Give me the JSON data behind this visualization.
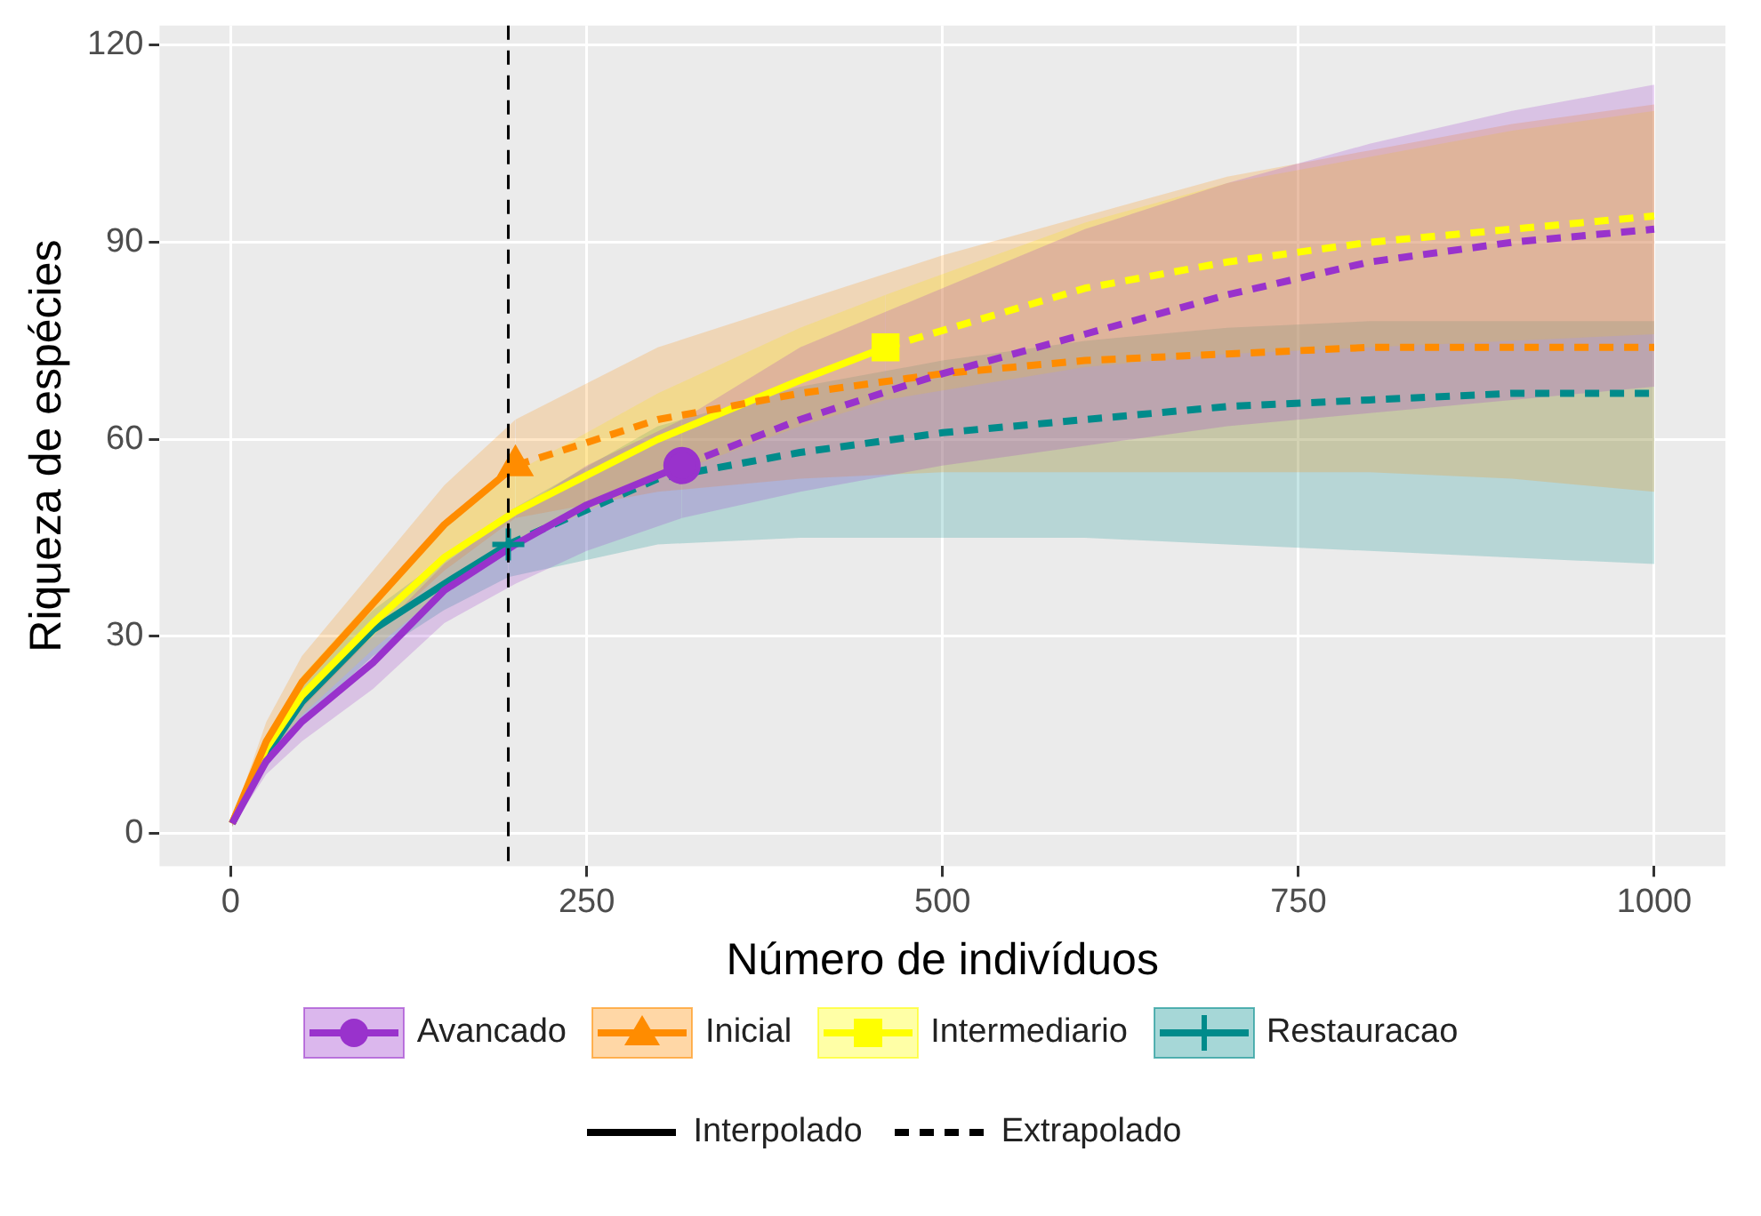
{
  "chart_data": {
    "type": "line",
    "xlabel": "Número de indivíduos",
    "ylabel": "Riqueza de espécies",
    "xlim": [
      -50,
      1050
    ],
    "ylim": [
      -5,
      123
    ],
    "xticks": [
      0,
      250,
      500,
      750,
      1000
    ],
    "yticks": [
      0,
      30,
      60,
      90,
      120
    ],
    "grid": true,
    "legend": "bottom",
    "ref_lines": [
      {
        "axis": "x",
        "value": 195,
        "color": "#000000",
        "line_style": "dashed"
      }
    ],
    "series": [
      {
        "type": "scatter",
        "color": "#9932CC",
        "marker": "circle",
        "x": [
          317
        ],
        "values": [
          56
        ]
      },
      {
        "type": "scatter",
        "color": "#FF8C00",
        "marker": "triangle",
        "x": [
          200
        ],
        "values": [
          56
        ]
      },
      {
        "type": "scatter",
        "color": "#FFFF00",
        "marker": "square",
        "x": [
          460
        ],
        "values": [
          74
        ]
      },
      {
        "type": "scatter",
        "color": "#008B8B",
        "marker": "cross",
        "x": [
          195
        ],
        "values": [
          44
        ]
      },
      {
        "name": "Avancado",
        "color": "#9932CC",
        "line_style": "solid",
        "x": [
          1,
          25,
          50,
          100,
          150,
          200,
          250,
          317
        ],
        "values": [
          1.5,
          11,
          17,
          26,
          37,
          44,
          50,
          56
        ],
        "lower": [
          1,
          9,
          14,
          22,
          32,
          38,
          43,
          48
        ],
        "upper": [
          2,
          13,
          20,
          30,
          41,
          49,
          56,
          63
        ]
      },
      {
        "color": "#9932CC",
        "line_style": "dashed",
        "x": [
          317,
          400,
          500,
          600,
          700,
          800,
          900,
          1000
        ],
        "values": [
          56,
          63,
          70,
          76,
          82,
          87,
          90,
          92
        ],
        "lower": [
          48,
          52,
          56,
          59,
          62,
          64,
          66,
          68
        ],
        "upper": [
          63,
          74,
          83,
          92,
          99,
          105,
          110,
          114
        ]
      },
      {
        "name": "Inicial",
        "color": "#FF8C00",
        "line_style": "solid",
        "x": [
          1,
          25,
          50,
          100,
          150,
          200
        ],
        "values": [
          1.5,
          14,
          23,
          35,
          47,
          56
        ],
        "lower": [
          1,
          11,
          19,
          30,
          40,
          48
        ],
        "upper": [
          2,
          17,
          27,
          40,
          53,
          63
        ]
      },
      {
        "color": "#FF8C00",
        "line_style": "dashed",
        "x": [
          200,
          300,
          400,
          500,
          600,
          700,
          800,
          900,
          1000
        ],
        "values": [
          56,
          63,
          67,
          70,
          72,
          73,
          74,
          74,
          74
        ],
        "lower": [
          48,
          52,
          54,
          55,
          55,
          55,
          55,
          54,
          52
        ],
        "upper": [
          63,
          74,
          81,
          88,
          94,
          100,
          104,
          108,
          111
        ]
      },
      {
        "name": "Intermediario",
        "color": "#FFFF00",
        "line_style": "solid",
        "x": [
          1,
          25,
          50,
          100,
          150,
          200,
          300,
          400,
          460
        ],
        "values": [
          1.5,
          13,
          21,
          32,
          42,
          49,
          60,
          69,
          74
        ],
        "lower": [
          1,
          11,
          18,
          28,
          37,
          44,
          54,
          62,
          66
        ],
        "upper": [
          2,
          15,
          24,
          36,
          47,
          55,
          67,
          77,
          82
        ]
      },
      {
        "color": "#FFFF00",
        "line_style": "dashed",
        "x": [
          460,
          600,
          700,
          800,
          900,
          1000
        ],
        "values": [
          74,
          83,
          87,
          90,
          92,
          94
        ],
        "lower": [
          66,
          71,
          73,
          74,
          75,
          76
        ],
        "upper": [
          82,
          93,
          99,
          103,
          107,
          110
        ]
      },
      {
        "name": "Restauracao",
        "color": "#008B8B",
        "line_style": "solid",
        "x": [
          1,
          25,
          50,
          100,
          150,
          195
        ],
        "values": [
          1.5,
          12,
          20,
          31,
          38,
          44
        ],
        "lower": [
          1,
          10,
          17,
          27,
          34,
          39
        ],
        "upper": [
          2,
          14,
          23,
          34,
          42,
          49
        ]
      },
      {
        "color": "#008B8B",
        "line_style": "dashed",
        "x": [
          195,
          300,
          400,
          500,
          600,
          700,
          800,
          900,
          1000
        ],
        "values": [
          44,
          54,
          58,
          61,
          63,
          65,
          66,
          67,
          67
        ],
        "lower": [
          39,
          44,
          45,
          45,
          45,
          44,
          43,
          42,
          41
        ],
        "upper": [
          49,
          62,
          68,
          72,
          75,
          77,
          78,
          78,
          78
        ]
      },
      {
        "name": "Interpolado",
        "color": "#000000",
        "line_style": "solid"
      },
      {
        "name": "Extrapolado",
        "color": "#000000",
        "line_style": "dashed"
      }
    ]
  }
}
